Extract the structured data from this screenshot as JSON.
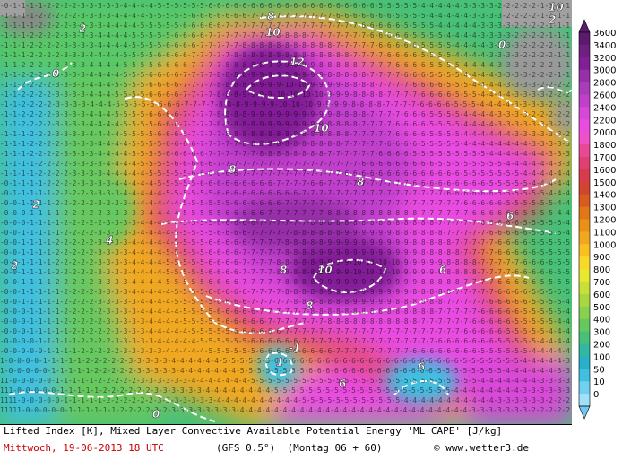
{
  "caption": {
    "line1": "Lifted Index [K], Mixed Layer Convective Available Potential Energy 'ML CAPE' [J/kg]",
    "date": "Mittwoch, 19-06-2013  18 UTC",
    "model": "(GFS 0.5°)",
    "run": "(Montag 06 + 60)",
    "copyright": "© www.wetter3.de"
  },
  "legend": {
    "units": "J/kg",
    "levels": [
      "3600",
      "3400",
      "3200",
      "3000",
      "2800",
      "2600",
      "2400",
      "2200",
      "2000",
      "1800",
      "1700",
      "1600",
      "1500",
      "1400",
      "1300",
      "1200",
      "1100",
      "1000",
      "900",
      "800",
      "700",
      "600",
      "500",
      "400",
      "300",
      "200",
      "100",
      "50",
      "10",
      "0"
    ],
    "colors": [
      "#5a1a6e",
      "#6e1f82",
      "#821f96",
      "#962fa8",
      "#a83cba",
      "#c040cc",
      "#d848d8",
      "#e84ce0",
      "#f050c8",
      "#e84896",
      "#e04070",
      "#d83c4c",
      "#d04430",
      "#d85c20",
      "#e07818",
      "#e89018",
      "#f0a820",
      "#f8c020",
      "#f8d828",
      "#e8e830",
      "#c8e038",
      "#a8d840",
      "#88d050",
      "#68c860",
      "#48c078",
      "#30b8a0",
      "#28b0c8",
      "#40c0e0",
      "#70d0f0",
      "#a0e0f8"
    ],
    "arrow_top_color": "#5a1a6e",
    "arrow_bottom_color": "#70c8f0"
  },
  "map": {
    "contour_labels": [
      "12",
      "10",
      "10",
      "8",
      "8",
      "6",
      "6",
      "8",
      "10",
      "8",
      "8",
      "6",
      "6",
      "4",
      "2",
      "2",
      "2",
      "0",
      "0",
      "0",
      "1",
      "-1",
      "10",
      "2"
    ]
  }
}
